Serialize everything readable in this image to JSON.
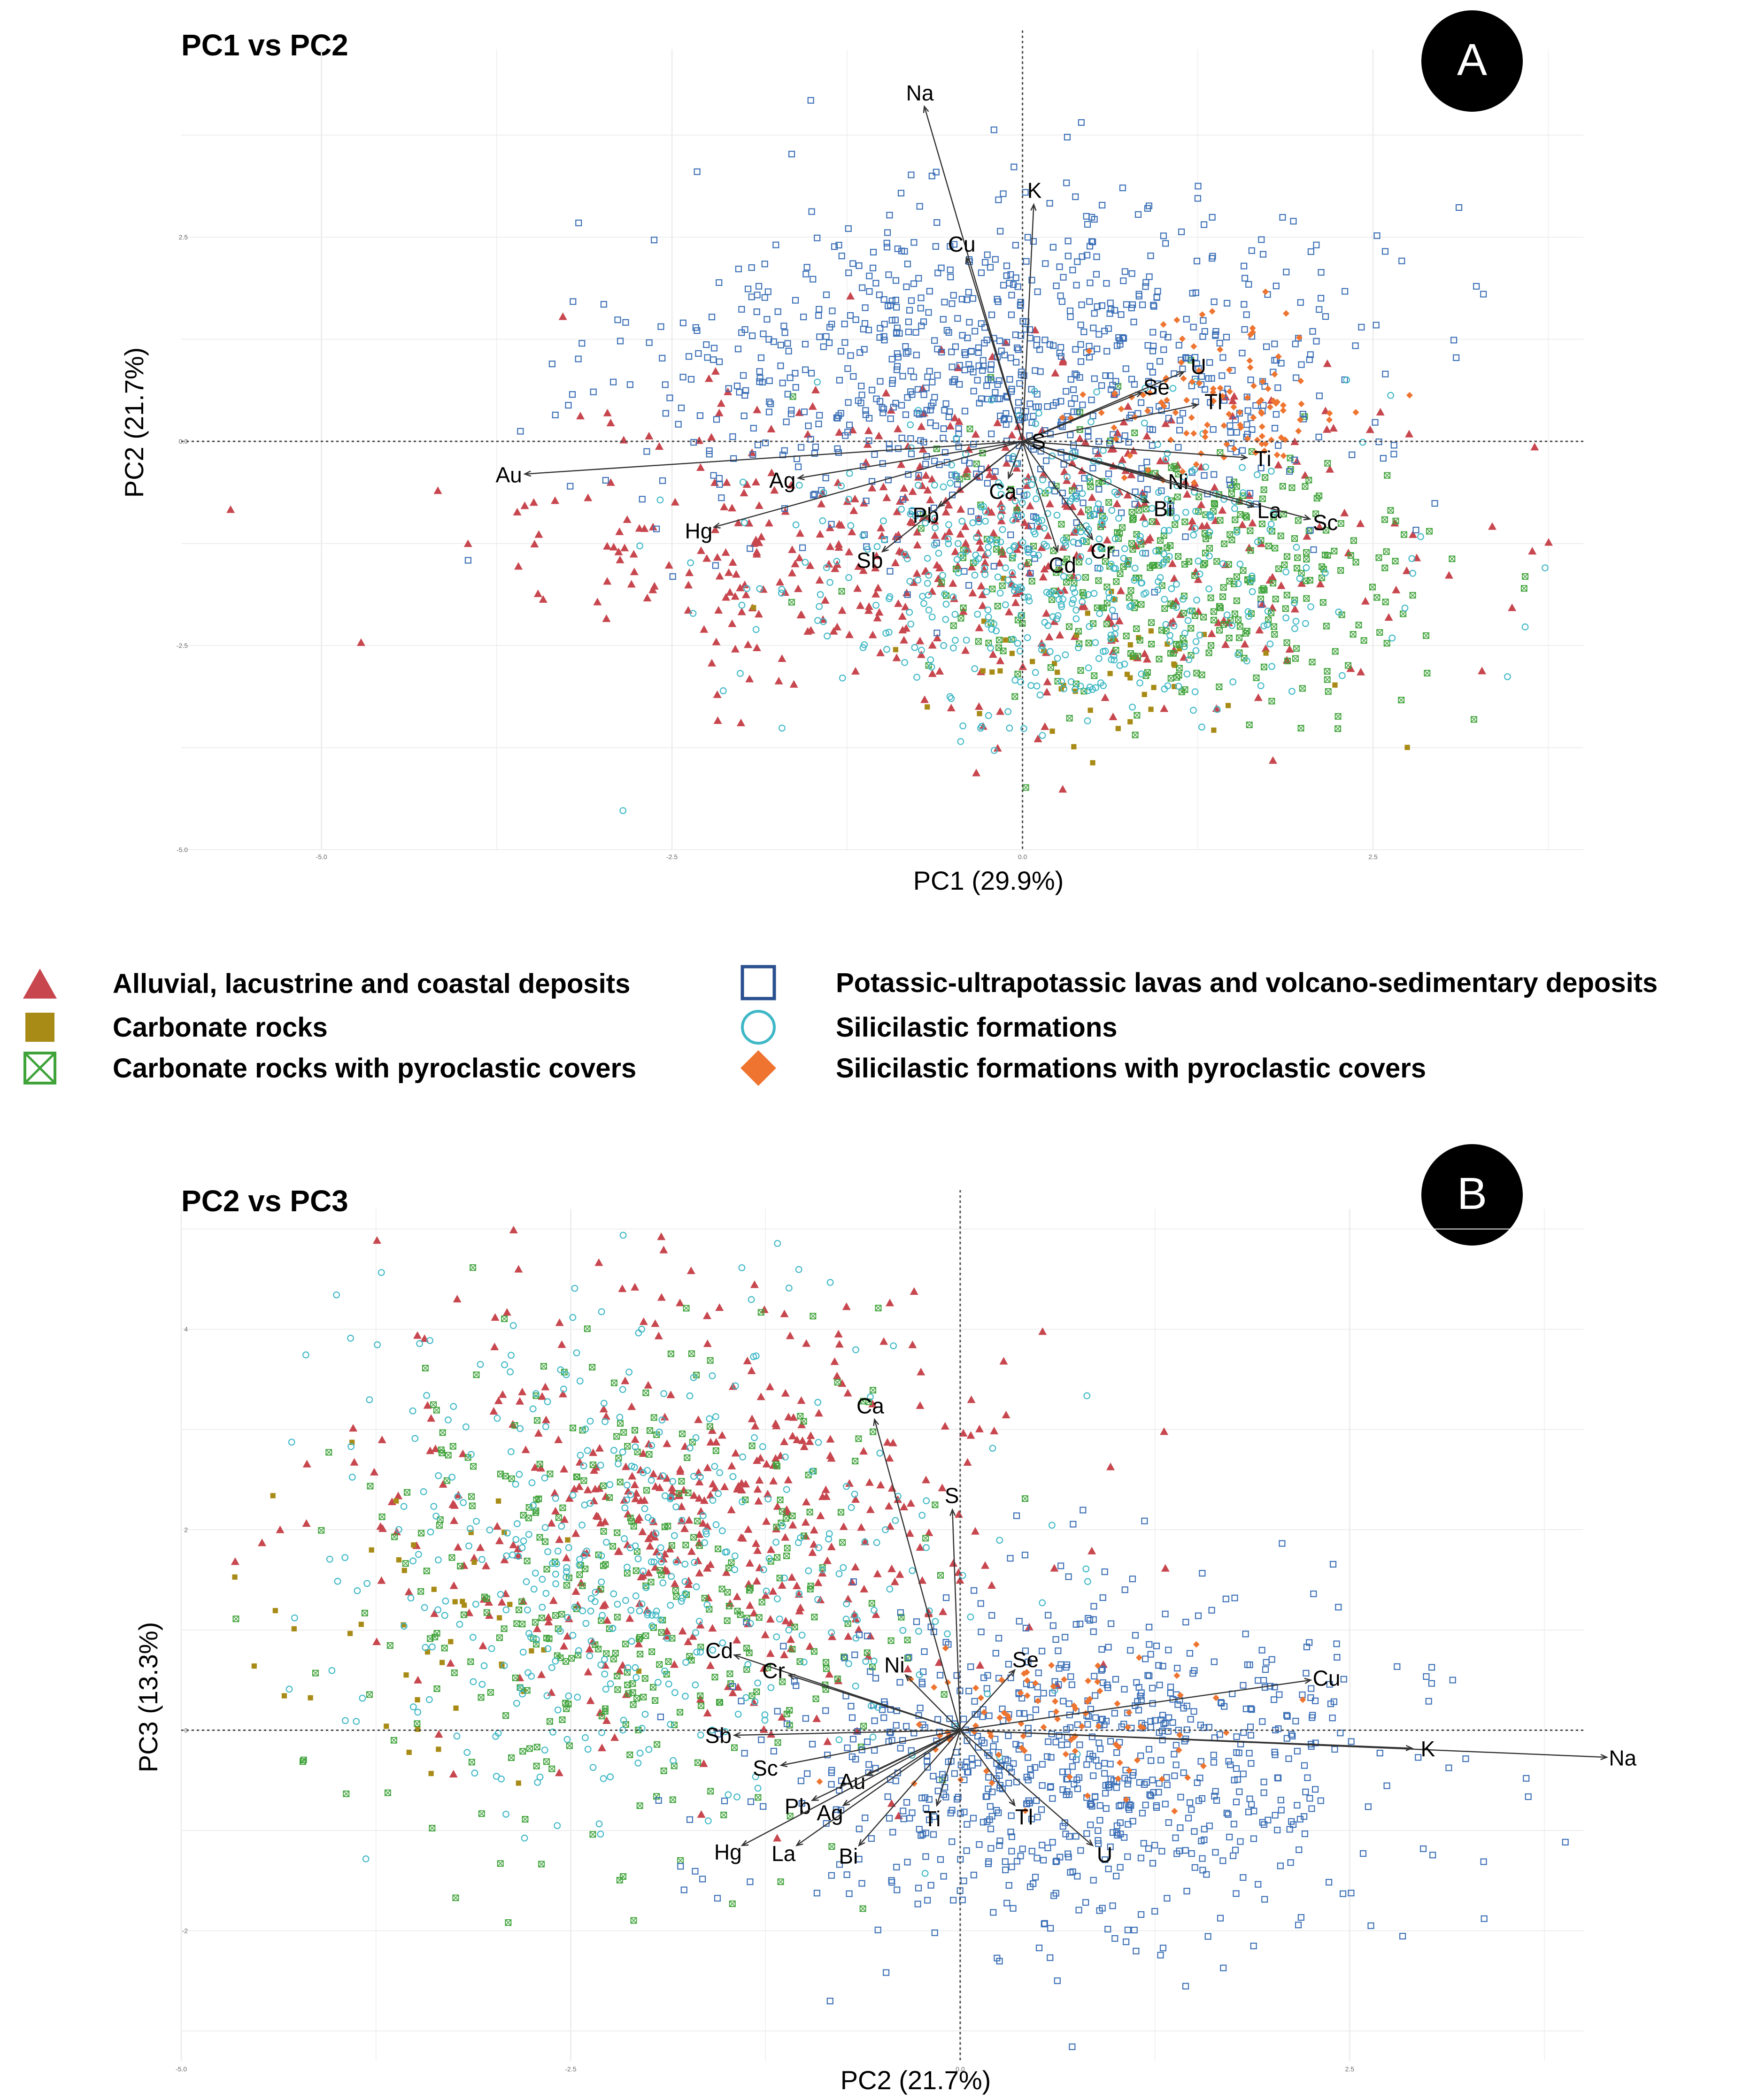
{
  "figure": {
    "panels": [
      {
        "title": "PC1 vs PC2",
        "badge": "A",
        "xlabel": "PC1 (29.9%)",
        "ylabel": "PC2 (21.7%)",
        "xticks": [
          "-5.0",
          "-2.5",
          "0.0",
          "2.5"
        ],
        "yticks": [
          "2.5",
          "0.0",
          "-2.5",
          "-5.0"
        ]
      },
      {
        "title": "PC2 vs PC3",
        "badge": "B",
        "xlabel": "PC2 (21.7%)",
        "ylabel": "PC3 (13.3%)",
        "xticks": [
          "-5.0",
          "-2.5",
          "0.0",
          "2.5"
        ],
        "yticks": [
          "4",
          "2",
          "0",
          "-2"
        ]
      }
    ]
  },
  "legend": {
    "items": [
      {
        "label": "Alluvial, lacustrine and coastal deposits",
        "symbol": "triangle",
        "color": "#c8474f"
      },
      {
        "label": "Carbonate rocks",
        "symbol": "square-filled",
        "color": "#a88b17"
      },
      {
        "label": "Carbonate rocks with pyroclastic covers",
        "symbol": "square-cross",
        "color": "#3fa33a"
      },
      {
        "label": "Potassic-ultrapotassic lavas and volcano-sedimentary deposits",
        "symbol": "square-open",
        "color": "#3b6fb6"
      },
      {
        "label": "Silicilastic formations",
        "symbol": "circle-open",
        "color": "#3fb8c6"
      },
      {
        "label": "Silicilastic formations with pyroclastic covers",
        "symbol": "diamond",
        "color": "#ee7430"
      }
    ]
  },
  "chart_data": [
    {
      "type": "scatter",
      "title": "PC1 vs PC2",
      "xlabel": "PC1 (29.9%)",
      "ylabel": "PC2 (21.7%)",
      "xlim": [
        -6.0,
        4.0
      ],
      "ylim": [
        -5.0,
        4.8
      ],
      "grid": true,
      "reference_lines": {
        "x": 0,
        "y": 0
      },
      "loadings": [
        {
          "label": "Na",
          "x": -0.7,
          "y": 4.1
        },
        {
          "label": "K",
          "x": 0.08,
          "y": 2.9
        },
        {
          "label": "Cu",
          "x": -0.4,
          "y": 2.25
        },
        {
          "label": "U",
          "x": 1.15,
          "y": 0.85
        },
        {
          "label": "Se",
          "x": 0.85,
          "y": 0.6
        },
        {
          "label": "Tl",
          "x": 1.25,
          "y": 0.45
        },
        {
          "label": "Ti",
          "x": 1.6,
          "y": -0.2
        },
        {
          "label": "Ni",
          "x": 1.0,
          "y": -0.45
        },
        {
          "label": "La",
          "x": 1.65,
          "y": -0.8
        },
        {
          "label": "Sc",
          "x": 2.05,
          "y": -0.95
        },
        {
          "label": "Bi",
          "x": 0.9,
          "y": -0.75
        },
        {
          "label": "Cr",
          "x": 0.5,
          "y": -1.2
        },
        {
          "label": "Cd",
          "x": 0.25,
          "y": -1.35
        },
        {
          "label": "Ca",
          "x": -0.1,
          "y": -0.45
        },
        {
          "label": "S",
          "x": 0.0,
          "y": 0.0
        },
        {
          "label": "Pb",
          "x": -0.6,
          "y": -0.8
        },
        {
          "label": "Sb",
          "x": -1.0,
          "y": -1.35
        },
        {
          "label": "Ag",
          "x": -1.6,
          "y": -0.45
        },
        {
          "label": "Hg",
          "x": -2.2,
          "y": -1.05
        },
        {
          "label": "Au",
          "x": -3.55,
          "y": -0.4
        }
      ],
      "groups": [
        {
          "name": "Alluvial, lacustrine and coastal deposits",
          "center": [
            -0.4,
            -1.2
          ],
          "spread": [
            1.5,
            1.0
          ],
          "n": 520
        },
        {
          "name": "Carbonate rocks",
          "center": [
            0.4,
            -2.7
          ],
          "spread": [
            0.8,
            0.5
          ],
          "n": 50
        },
        {
          "name": "Carbonate rocks with pyroclastic covers",
          "center": [
            1.2,
            -1.7
          ],
          "spread": [
            0.9,
            0.85
          ],
          "n": 380
        },
        {
          "name": "Potassic-ultrapotassic lavas and volcano-sedimentary deposits",
          "center": [
            -0.1,
            0.9
          ],
          "spread": [
            1.3,
            1.0
          ],
          "n": 900
        },
        {
          "name": "Silicilastic formations",
          "center": [
            0.3,
            -1.6
          ],
          "spread": [
            1.0,
            0.95
          ],
          "n": 480
        },
        {
          "name": "Silicilastic formations with pyroclastic covers",
          "center": [
            1.4,
            0.4
          ],
          "spread": [
            0.5,
            0.5
          ],
          "n": 110
        }
      ]
    },
    {
      "type": "scatter",
      "title": "PC2 vs PC3",
      "xlabel": "PC2 (21.7%)",
      "ylabel": "PC3 (13.3%)",
      "xlim": [
        -5.0,
        4.0
      ],
      "ylim": [
        -3.3,
        5.2
      ],
      "grid": true,
      "reference_lines": {
        "x": 0,
        "y": 0
      },
      "loadings": [
        {
          "label": "Na",
          "x": 4.15,
          "y": -0.27
        },
        {
          "label": "K",
          "x": 2.9,
          "y": -0.18
        },
        {
          "label": "Cu",
          "x": 2.25,
          "y": 0.5
        },
        {
          "label": "Se",
          "x": 0.35,
          "y": 0.6
        },
        {
          "label": "Ca",
          "x": -0.55,
          "y": 3.1
        },
        {
          "label": "S",
          "x": -0.05,
          "y": 2.2
        },
        {
          "label": "Ni",
          "x": -0.35,
          "y": 0.55
        },
        {
          "label": "Cd",
          "x": -1.45,
          "y": 0.75
        },
        {
          "label": "Cr",
          "x": -1.1,
          "y": 0.55
        },
        {
          "label": "Sb",
          "x": -1.45,
          "y": -0.05
        },
        {
          "label": "Sc",
          "x": -1.15,
          "y": -0.35
        },
        {
          "label": "Au",
          "x": -0.6,
          "y": -0.45
        },
        {
          "label": "Pb",
          "x": -0.95,
          "y": -0.7
        },
        {
          "label": "Ag",
          "x": -0.75,
          "y": -0.75
        },
        {
          "label": "Hg",
          "x": -1.4,
          "y": -1.15
        },
        {
          "label": "La",
          "x": -1.05,
          "y": -1.15
        },
        {
          "label": "Bi",
          "x": -0.65,
          "y": -1.15
        },
        {
          "label": "Ti",
          "x": -0.15,
          "y": -0.75
        },
        {
          "label": "Tl",
          "x": 0.35,
          "y": -0.75
        },
        {
          "label": "U",
          "x": 0.85,
          "y": -1.15
        }
      ],
      "groups": [
        {
          "name": "Alluvial, lacustrine and coastal deposits",
          "center": [
            -1.6,
            2.1
          ],
          "spread": [
            1.1,
            1.1
          ],
          "n": 470
        },
        {
          "name": "Carbonate rocks",
          "center": [
            -3.4,
            1.2
          ],
          "spread": [
            0.5,
            0.8
          ],
          "n": 45
        },
        {
          "name": "Carbonate rocks with pyroclastic covers",
          "center": [
            -2.1,
            1.3
          ],
          "spread": [
            0.9,
            1.2
          ],
          "n": 360
        },
        {
          "name": "Potassic-ultrapotassic lavas and volcano-sedimentary deposits",
          "center": [
            0.8,
            -0.4
          ],
          "spread": [
            1.0,
            0.85
          ],
          "n": 820
        },
        {
          "name": "Silicilastic formations",
          "center": [
            -2.2,
            1.7
          ],
          "spread": [
            1.1,
            1.2
          ],
          "n": 440
        },
        {
          "name": "Silicilastic formations with pyroclastic covers",
          "center": [
            0.6,
            0.1
          ],
          "spread": [
            0.5,
            0.4
          ],
          "n": 90
        }
      ]
    }
  ]
}
